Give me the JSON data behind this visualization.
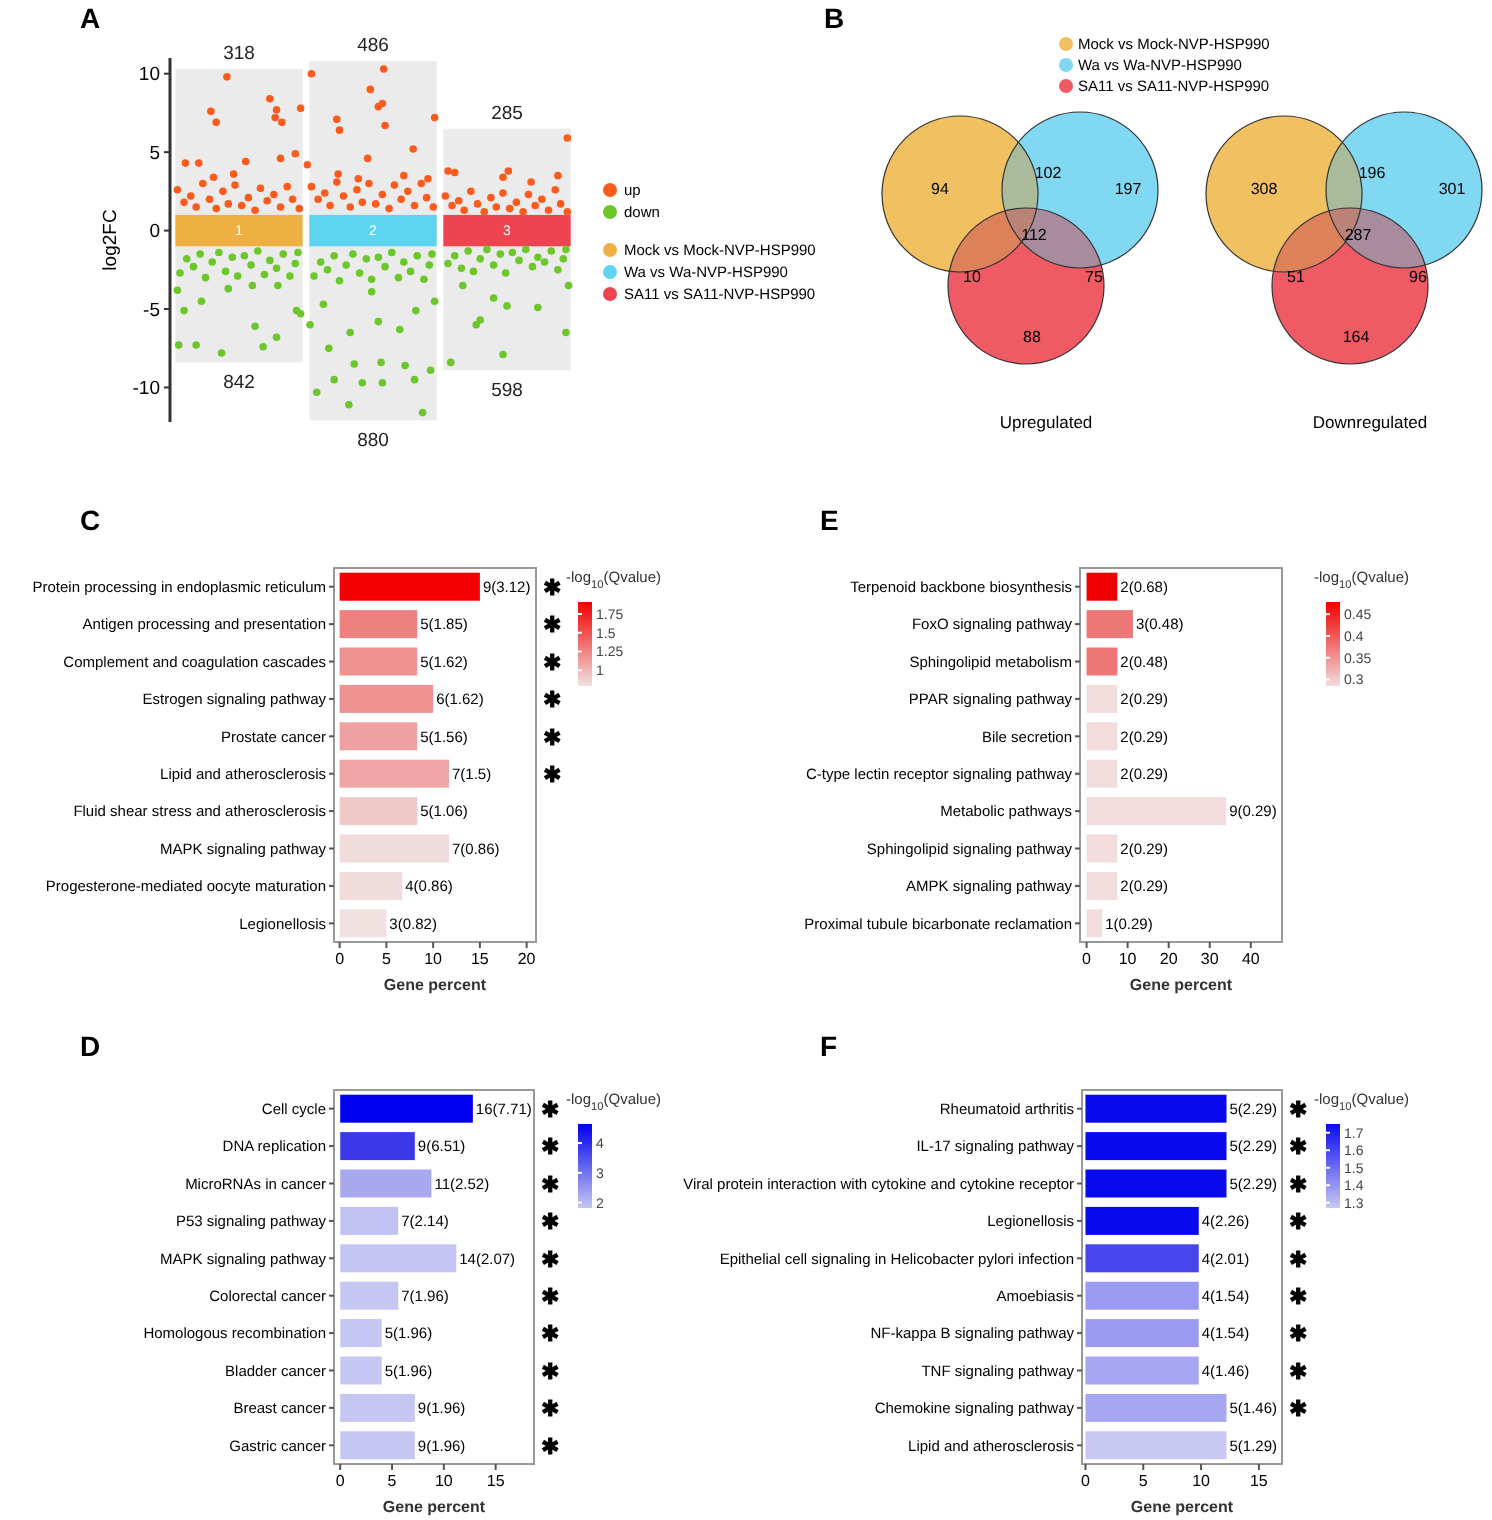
{
  "chart_data": [
    {
      "type": "scatter",
      "title": "A",
      "ylabel": "log2FC",
      "xlim": [
        0,
        3
      ],
      "ylim": [
        -12.2,
        11
      ],
      "yticks": [
        -10,
        -5,
        0,
        5,
        10
      ],
      "xticks": [
        {
          "value": 0.5,
          "label": "1"
        },
        {
          "value": 1.5,
          "label": "2"
        },
        {
          "value": 2.5,
          "label": "3"
        }
      ],
      "legend": "right",
      "marker": "circle",
      "annotations": [
        {
          "text": "318",
          "x": 0.5,
          "y": 10.3
        },
        {
          "text": "842",
          "x": 0.5,
          "y": -8.4
        },
        {
          "text": "486",
          "x": 1.5,
          "y": 10.8
        },
        {
          "text": "880",
          "x": 1.5,
          "y": -12.1
        },
        {
          "text": "285",
          "x": 2.5,
          "y": 6.5
        },
        {
          "text": "598",
          "x": 2.5,
          "y": -8.9
        }
      ],
      "series": [
        {
          "type": "bar",
          "color": "#ebebeb",
          "x": [
            0.5,
            1.5,
            2.5
          ],
          "base": [
            -8.4,
            -12.1,
            -8.9
          ],
          "values": [
            18.7,
            22.9,
            15.4
          ]
        },
        {
          "type": "scatter",
          "name": "up",
          "color": "#fc5b1e",
          "x": [
            0.41,
            0.29,
            0.33,
            0.73,
            0.78,
            0.77,
            0.82,
            0.96,
            0.92,
            0.81,
            0.1,
            0.2,
            0.55,
            0.46,
            0.31,
            0.04,
            0.09,
            0.14,
            0.18,
            0.23,
            0.28,
            0.33,
            0.38,
            0.42,
            0.47,
            0.52,
            0.57,
            0.62,
            0.66,
            0.71,
            0.76,
            0.81,
            0.86,
            0.9,
            0.95,
            1.04,
            1.58,
            1.48,
            1.57,
            1.54,
            1.23,
            1.25,
            1.59,
            1.96,
            1.8,
            1.46,
            1.01,
            1.24,
            1.39,
            1.73,
            1.91,
            1.04,
            1.09,
            1.14,
            1.18,
            1.23,
            1.28,
            1.33,
            1.38,
            1.42,
            1.47,
            1.52,
            1.57,
            1.62,
            1.66,
            1.71,
            1.76,
            1.81,
            1.86,
            1.9,
            1.95,
            2.95,
            2.06,
            2.51,
            2.88,
            2.11,
            2.47,
            2.68,
            2.04,
            2.09,
            2.14,
            2.18,
            2.23,
            2.28,
            2.33,
            2.38,
            2.42,
            2.47,
            2.52,
            2.57,
            2.62,
            2.66,
            2.71,
            2.76,
            2.81,
            2.86,
            2.9,
            2.95
          ],
          "values": [
            9.8,
            7.6,
            6.9,
            8.4,
            7.7,
            7.2,
            6.9,
            7.8,
            4.9,
            4.6,
            4.3,
            4.3,
            4.4,
            3.6,
            3.4,
            2.6,
            1.8,
            2.2,
            1.5,
            3.0,
            2.0,
            1.4,
            2.5,
            1.7,
            2.9,
            1.6,
            2.1,
            1.3,
            2.7,
            1.9,
            2.3,
            1.5,
            2.8,
            2.0,
            1.4,
            10.0,
            10.3,
            9.0,
            8.1,
            7.9,
            7.1,
            6.4,
            6.7,
            7.2,
            5.2,
            4.6,
            4.2,
            3.6,
            3.3,
            3.5,
            3.3,
            2.8,
            2.0,
            2.4,
            1.6,
            3.1,
            2.2,
            1.5,
            2.6,
            1.8,
            3.0,
            1.7,
            2.3,
            1.4,
            2.9,
            2.0,
            2.5,
            1.6,
            3.0,
            2.1,
            1.5,
            5.9,
            3.8,
            3.8,
            3.5,
            3.7,
            3.4,
            3.1,
            2.2,
            1.6,
            1.9,
            1.3,
            2.5,
            1.7,
            1.2,
            2.1,
            1.5,
            2.4,
            1.4,
            1.8,
            1.2,
            2.3,
            1.6,
            2.0,
            1.3,
            2.6,
            1.7,
            1.2
          ]
        },
        {
          "type": "scatter",
          "name": "down",
          "color": "#6cc72a",
          "x": [
            0.05,
            0.18,
            0.37,
            0.68,
            0.62,
            0.78,
            0.09,
            0.93,
            0.96,
            0.22,
            0.42,
            0.6,
            0.04,
            0.79,
            0.06,
            0.11,
            0.16,
            0.21,
            0.25,
            0.3,
            0.35,
            0.4,
            0.45,
            0.49,
            0.54,
            0.59,
            0.64,
            0.69,
            0.73,
            0.78,
            0.83,
            0.88,
            0.92,
            0.94,
            1.08,
            1.32,
            1.87,
            1.21,
            1.42,
            1.57,
            1.81,
            1.56,
            1.36,
            1.74,
            1.93,
            1.17,
            1.33,
            1.7,
            1.54,
            1.13,
            1.03,
            1.82,
            1.96,
            1.49,
            1.06,
            1.11,
            1.16,
            1.21,
            1.25,
            1.3,
            1.35,
            1.4,
            1.45,
            1.49,
            1.54,
            1.59,
            1.64,
            1.69,
            1.73,
            1.78,
            1.83,
            1.88,
            1.92,
            1.94,
            2.08,
            2.47,
            2.3,
            2.27,
            2.94,
            2.73,
            2.5,
            2.96,
            2.17,
            2.4,
            2.06,
            2.11,
            2.16,
            2.21,
            2.25,
            2.3,
            2.35,
            2.4,
            2.45,
            2.49,
            2.54,
            2.59,
            2.64,
            2.69,
            2.73,
            2.78,
            2.83,
            2.88,
            2.92,
            2.94
          ],
          "values": [
            -7.3,
            -7.3,
            -7.8,
            -7.4,
            -6.1,
            -6.8,
            -5.1,
            -5.1,
            -5.3,
            -4.5,
            -3.7,
            -3.5,
            -3.8,
            -3.5,
            -2.7,
            -1.8,
            -2.3,
            -1.5,
            -3.0,
            -2.0,
            -1.4,
            -2.6,
            -1.7,
            -2.9,
            -1.6,
            -2.2,
            -1.3,
            -2.8,
            -1.9,
            -2.4,
            -1.5,
            -2.9,
            -2.1,
            -1.4,
            -10.3,
            -11.1,
            -11.6,
            -9.5,
            -9.7,
            -9.7,
            -9.5,
            -8.4,
            -8.5,
            -8.6,
            -8.9,
            -7.5,
            -6.5,
            -6.3,
            -5.8,
            -4.7,
            -6.0,
            -5.1,
            -4.5,
            -3.9,
            -2.9,
            -2.0,
            -2.5,
            -1.6,
            -3.2,
            -2.2,
            -1.5,
            -2.7,
            -1.8,
            -3.1,
            -1.7,
            -2.3,
            -1.4,
            -3.0,
            -2.0,
            -2.6,
            -1.6,
            -3.1,
            -2.2,
            -1.5,
            -8.4,
            -7.9,
            -5.7,
            -6.0,
            -6.5,
            -4.9,
            -4.8,
            -3.5,
            -3.5,
            -4.3,
            -2.1,
            -1.6,
            -2.4,
            -1.3,
            -2.6,
            -1.8,
            -1.2,
            -2.2,
            -1.5,
            -2.7,
            -1.4,
            -1.9,
            -1.2,
            -2.3,
            -1.7,
            -2.0,
            -1.3,
            -2.5,
            -1.8,
            -1.2
          ]
        },
        {
          "type": "bar",
          "name": "Mock vs Mock-NVP-HSP990",
          "color": "#efb043",
          "x": [
            0.5
          ],
          "base": [
            -1
          ],
          "values": [
            2
          ]
        },
        {
          "type": "bar",
          "name": "Wa vs Wa-NVP-HSP990",
          "color": "#5fd4f0",
          "x": [
            1.5
          ],
          "base": [
            -1
          ],
          "values": [
            2
          ]
        },
        {
          "type": "bar",
          "name": "SA11 vs SA11-NVP-HSP990",
          "color": "#ee4450",
          "x": [
            2.5
          ],
          "base": [
            -1
          ],
          "values": [
            2
          ]
        }
      ]
    },
    {
      "type": "other",
      "title": "B",
      "xlabel": "Upregulated",
      "categories": [
        "Mock vs Mock-NVP-HSP990",
        "Wa vs Wa-NVP-HSP990",
        "SA11 vs SA11-NVP-HSP990"
      ],
      "colors": [
        "#f1c060",
        "#80d8f3",
        "#ef5a64"
      ],
      "annotations": [
        "94",
        "197",
        "88",
        "102",
        "10",
        "75",
        "112"
      ]
    },
    {
      "type": "other",
      "xlabel": "Downregulated",
      "categories": [
        null,
        null,
        null
      ],
      "colors": [
        "#f1c060",
        "#80d8f3",
        "#ef5a64"
      ],
      "annotations": [
        "308",
        "301",
        "164",
        "196",
        "51",
        "96",
        "287"
      ]
    },
    {
      "type": "bar",
      "title": "C",
      "orientation": "horizontal",
      "xlabel": "Gene percent",
      "clabel": "-log$_{10}$(Qvalue)",
      "xlim": [
        -0.6,
        21
      ],
      "xticks": [
        0,
        5,
        10,
        15,
        20
      ],
      "clim": [
        0.79,
        1.91
      ],
      "cticks": [
        1,
        1.25,
        1.5,
        1.75
      ],
      "categories": [
        "Protein processing in endoplasmic reticulum",
        "Antigen processing and presentation",
        "Complement and coagulation cascades",
        "Estrogen signaling pathway",
        "Prostate cancer",
        "Lipid and atherosclerosis",
        "Fluid shear stress and atherosclerosis",
        "MAPK signaling pathway",
        "Progesterone-mediated oocyte maturation",
        "Legionellosis"
      ],
      "values": [
        15.0,
        8.3,
        8.3,
        10.0,
        8.3,
        11.7,
        8.3,
        11.7,
        6.7,
        5.0
      ],
      "colors": [
        "#f20000",
        "#ef8080",
        "#ef9292",
        "#ef9292",
        "#efa0a0",
        "#efa5a5",
        "#efc8c8",
        "#f1dcdc",
        "#f1dcdc",
        "#f1e0e0"
      ],
      "annotations": [
        {
          "text": "9(3.12)",
          "x": 15.0,
          "y": "Protein processing in endoplasmic reticulum"
        },
        {
          "text": "5(1.85)",
          "x": 8.3,
          "y": "Antigen processing and presentation"
        },
        {
          "text": "5(1.62)",
          "x": 8.3,
          "y": "Complement and coagulation cascades"
        },
        {
          "text": "6(1.62)",
          "x": 10.0,
          "y": "Estrogen signaling pathway"
        },
        {
          "text": "5(1.56)",
          "x": 8.3,
          "y": "Prostate cancer"
        },
        {
          "text": "7(1.5)",
          "x": 11.7,
          "y": "Lipid and atherosclerosis"
        },
        {
          "text": "5(1.06)",
          "x": 8.3,
          "y": "Fluid shear stress and atherosclerosis"
        },
        {
          "text": "7(0.86)",
          "x": 11.7,
          "y": "MAPK signaling pathway"
        },
        {
          "text": "4(0.86)",
          "x": 6.7,
          "y": "Progesterone-mediated oocyte maturation"
        },
        {
          "text": "3(0.82)",
          "x": 5.0,
          "y": "Legionellosis"
        },
        "✱",
        "✱",
        "✱",
        "✱",
        "✱",
        "✱"
      ]
    },
    {
      "type": "bar",
      "title": "E",
      "orientation": "horizontal",
      "xlabel": "Gene percent",
      "clabel": "-log$_{10}$(Qvalue)",
      "xlim": [
        -1.6,
        47.6
      ],
      "xticks": [
        0,
        10,
        20,
        30,
        40
      ],
      "clim": [
        0.285,
        0.478
      ],
      "cticks": [
        0.3,
        0.35,
        0.4,
        0.45
      ],
      "categories": [
        "Terpenoid backbone biosynthesis",
        "FoxO signaling pathway",
        "Sphingolipid metabolism",
        "PPAR signaling pathway",
        "Bile secretion",
        "C-type lectin receptor signaling pathway",
        "Metabolic pathways",
        "Sphingolipid signaling pathway",
        "AMPK signaling pathway",
        "Proximal tubule bicarbonate reclamation"
      ],
      "values": [
        7.5,
        11.3,
        7.5,
        7.5,
        7.5,
        7.5,
        34.0,
        7.5,
        7.5,
        3.8
      ],
      "colors": [
        "#f00000",
        "#ee7878",
        "#ee7878",
        "#f2dcdc",
        "#f2dcdc",
        "#f2dcdc",
        "#f2dcdc",
        "#f2dcdc",
        "#f2dcdc",
        "#f2dcdc"
      ],
      "annotations": [
        {
          "text": "2(0.68)",
          "x": 7.5,
          "y": "Terpenoid backbone biosynthesis"
        },
        {
          "text": "3(0.48)",
          "x": 11.3,
          "y": "FoxO signaling pathway"
        },
        {
          "text": "2(0.48)",
          "x": 7.5,
          "y": "Sphingolipid metabolism"
        },
        {
          "text": "2(0.29)",
          "x": 7.5,
          "y": "PPAR signaling pathway"
        },
        {
          "text": "2(0.29)",
          "x": 7.5,
          "y": "Bile secretion"
        },
        {
          "text": "2(0.29)",
          "x": 7.5,
          "y": "C-type lectin receptor signaling pathway"
        },
        {
          "text": "9(0.29)",
          "x": 34.0,
          "y": "Metabolic pathways"
        },
        {
          "text": "2(0.29)",
          "x": 7.5,
          "y": "Sphingolipid signaling pathway"
        },
        {
          "text": "2(0.29)",
          "x": 7.5,
          "y": "AMPK signaling pathway"
        },
        {
          "text": "1(0.29)",
          "x": 3.8,
          "y": "Proximal tubule bicarbonate reclamation"
        }
      ]
    },
    {
      "type": "bar",
      "title": "D",
      "orientation": "horizontal",
      "xlabel": "Gene percent",
      "clabel": "-log$_{10}$(Qvalue)",
      "xlim": [
        -0.6,
        18.7
      ],
      "xticks": [
        0,
        5,
        10,
        15
      ],
      "clim": [
        1.82,
        4.64
      ],
      "cticks": [
        2,
        3,
        4
      ],
      "categories": [
        "Cell cycle",
        "DNA replication",
        "MicroRNAs in cancer",
        "P53 signaling pathway",
        "MAPK signaling pathway",
        "Colorectal cancer",
        "Homologous recombination",
        "Bladder cancer",
        "Breast cancer",
        "Gastric cancer"
      ],
      "values": [
        12.8,
        7.2,
        8.8,
        5.6,
        11.2,
        5.6,
        4.0,
        4.0,
        7.2,
        7.2
      ],
      "colors": [
        "#0000f0",
        "#3a3aeb",
        "#a8a8ee",
        "#c2c2f2",
        "#c4c4f2",
        "#c6c6f2",
        "#c6c6f2",
        "#c6c6f2",
        "#c6c6f2",
        "#c6c6f2"
      ],
      "annotations": [
        {
          "text": "16(7.71)",
          "x": 12.8,
          "y": "Cell cycle"
        },
        {
          "text": "9(6.51)",
          "x": 7.2,
          "y": "DNA replication"
        },
        {
          "text": "11(2.52)",
          "x": 8.8,
          "y": "MicroRNAs in cancer"
        },
        {
          "text": "7(2.14)",
          "x": 5.6,
          "y": "P53 signaling pathway"
        },
        {
          "text": "14(2.07)",
          "x": 11.2,
          "y": "MAPK signaling pathway"
        },
        {
          "text": "7(1.96)",
          "x": 5.6,
          "y": "Colorectal cancer"
        },
        {
          "text": "5(1.96)",
          "x": 4.0,
          "y": "Homologous recombination"
        },
        {
          "text": "5(1.96)",
          "x": 4.0,
          "y": "Bladder cancer"
        },
        {
          "text": "9(1.96)",
          "x": 7.2,
          "y": "Breast cancer"
        },
        {
          "text": "9(1.96)",
          "x": 7.2,
          "y": "Gastric cancer"
        },
        "✱",
        "✱",
        "✱",
        "✱",
        "✱",
        "✱",
        "✱",
        "✱",
        "✱",
        "✱"
      ]
    },
    {
      "type": "bar",
      "title": "F",
      "orientation": "horizontal",
      "xlabel": "Gene percent",
      "clabel": "-log$_{10}$(Qvalue)",
      "xlim": [
        -0.3,
        17.0
      ],
      "xticks": [
        0,
        5,
        10,
        15
      ],
      "clim": [
        1.27,
        1.75
      ],
      "cticks": [
        1.3,
        1.4,
        1.5,
        1.6,
        1.7
      ],
      "categories": [
        "Rheumatoid arthritis",
        "IL-17 signaling pathway",
        "Viral protein interaction with cytokine and cytokine receptor",
        "Legionellosis",
        "Epithelial cell signaling in Helicobacter pylori infection",
        "Amoebiasis",
        "NF-kappa B signaling pathway",
        "TNF signaling pathway",
        "Chemokine signaling pathway",
        "Lipid and atherosclerosis"
      ],
      "values": [
        12.2,
        12.2,
        12.2,
        9.8,
        9.8,
        9.8,
        9.8,
        9.8,
        12.2,
        12.2
      ],
      "colors": [
        "#0a0af0",
        "#0a0af0",
        "#0a0af0",
        "#0a0af0",
        "#4646ee",
        "#9a9af2",
        "#9a9af2",
        "#a6a6f2",
        "#a8a8f2",
        "#c8c8f2"
      ],
      "annotations": [
        {
          "text": "5(2.29)",
          "x": 12.2,
          "y": "Rheumatoid arthritis"
        },
        {
          "text": "5(2.29)",
          "x": 12.2,
          "y": "IL-17 signaling pathway"
        },
        {
          "text": "5(2.29)",
          "x": 12.2,
          "y": "Viral protein interaction with cytokine and cytokine receptor"
        },
        {
          "text": "4(2.26)",
          "x": 9.8,
          "y": "Legionellosis"
        },
        {
          "text": "4(2.01)",
          "x": 9.8,
          "y": "Epithelial cell signaling in Helicobacter pylori infection"
        },
        {
          "text": "4(1.54)",
          "x": 9.8,
          "y": "Amoebiasis"
        },
        {
          "text": "4(1.54)",
          "x": 9.8,
          "y": "NF-kappa B signaling pathway"
        },
        {
          "text": "4(1.46)",
          "x": 9.8,
          "y": "TNF signaling pathway"
        },
        {
          "text": "5(1.46)",
          "x": 12.2,
          "y": "Chemokine signaling pathway"
        },
        {
          "text": "5(1.29)",
          "x": 12.2,
          "y": "Lipid and atherosclerosis"
        },
        "✱",
        "✱",
        "✱",
        "✱",
        "✱",
        "✱",
        "✱",
        "✱",
        "✱"
      ]
    }
  ]
}
